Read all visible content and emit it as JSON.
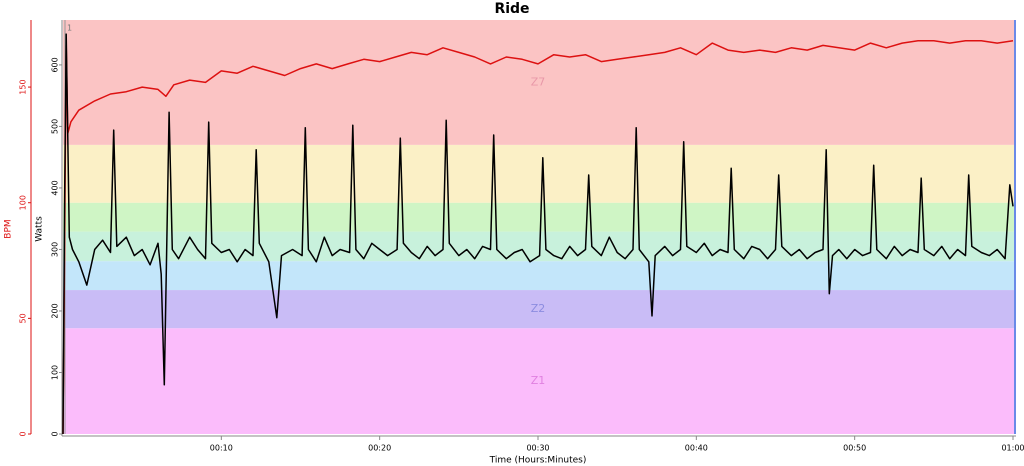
{
  "chart_data": {
    "type": "line",
    "title": "Ride",
    "x_label": "Time (Hours:Minutes)",
    "y_label": "Watts",
    "y2_label": "BPM",
    "annotations": [
      "1"
    ],
    "xlim": [
      0,
      60
    ],
    "xticks": [
      {
        "value": 10,
        "label": "00:10"
      },
      {
        "value": 20,
        "label": "00:20"
      },
      {
        "value": 30,
        "label": "00:30"
      },
      {
        "value": 40,
        "label": "00:40"
      },
      {
        "value": 50,
        "label": "00:50"
      },
      {
        "value": 60,
        "label": "01:00"
      }
    ],
    "ylim": [
      0,
      673
    ],
    "yticks": [
      0,
      100,
      200,
      300,
      400,
      500,
      600
    ],
    "y2lim": [
      0,
      179
    ],
    "y2ticks": [
      0,
      50,
      100,
      150
    ],
    "y2_color": "#dd1111",
    "zones": [
      {
        "label": "Z1",
        "from": 0,
        "to": 172,
        "color": "#fbbcfb",
        "label_color": "#e080e0"
      },
      {
        "label": "Z2",
        "from": 172,
        "to": 234,
        "color": "#c9bcf6",
        "label_color": "#8c8ce0"
      },
      {
        "from": 234,
        "to": 281,
        "color": "#c3e6fa"
      },
      {
        "from": 281,
        "to": 329,
        "color": "#c8f1dc"
      },
      {
        "from": 329,
        "to": 376,
        "color": "#cff5c5"
      },
      {
        "from": 376,
        "to": 470,
        "color": "#fbf0c6"
      },
      {
        "label": "Z7",
        "from": 470,
        "to": 673,
        "color": "#fbc4c4",
        "label_color": "#e898a8"
      }
    ],
    "series": [
      {
        "name": "Watts",
        "color": "#000000",
        "x": [
          0,
          0.1,
          0.2,
          0.3,
          0.4,
          0.6,
          1,
          1.5,
          2,
          2.5,
          3,
          3.2,
          3.4,
          4,
          4.5,
          5,
          5.5,
          6,
          6.2,
          6.4,
          6.7,
          6.9,
          7.3,
          8,
          8.5,
          9,
          9.2,
          9.4,
          10,
          10.5,
          11,
          11.5,
          12,
          12.2,
          12.4,
          13,
          13.5,
          13.8,
          14.5,
          15.1,
          15.3,
          15.5,
          16,
          16.5,
          17,
          17.5,
          18.1,
          18.3,
          18.5,
          19,
          19.5,
          20,
          20.5,
          21.1,
          21.3,
          21.5,
          22,
          22.5,
          23,
          23.5,
          24,
          24.2,
          24.4,
          25,
          25.5,
          26,
          26.5,
          27,
          27.2,
          27.4,
          28,
          28.5,
          29,
          29.5,
          30.1,
          30.3,
          30.5,
          31,
          31.5,
          32,
          32.5,
          33,
          33.2,
          33.4,
          34,
          34.5,
          35,
          35.5,
          36,
          36.2,
          36.4,
          37,
          37.2,
          37.4,
          38,
          38.5,
          39,
          39.2,
          39.4,
          40,
          40.5,
          41,
          41.5,
          42,
          42.2,
          42.4,
          43,
          43.5,
          44,
          44.5,
          45,
          45.2,
          45.4,
          46,
          46.5,
          47,
          47.5,
          48,
          48.2,
          48.4,
          48.6,
          49,
          49.5,
          50,
          50.5,
          51,
          51.2,
          51.4,
          52,
          52.5,
          53,
          53.5,
          54,
          54.2,
          54.4,
          55,
          55.5,
          56,
          56.5,
          57,
          57.2,
          57.4,
          58,
          58.5,
          59,
          59.5,
          59.8,
          60
        ],
        "values": [
          0,
          380,
          650,
          480,
          320,
          300,
          280,
          242,
          300,
          315,
          295,
          494,
          305,
          320,
          290,
          300,
          275,
          310,
          260,
          80,
          523,
          300,
          285,
          320,
          300,
          285,
          507,
          310,
          295,
          300,
          280,
          300,
          290,
          462,
          310,
          280,
          189,
          290,
          300,
          290,
          498,
          300,
          280,
          320,
          290,
          300,
          295,
          502,
          300,
          285,
          310,
          300,
          290,
          300,
          481,
          310,
          295,
          285,
          305,
          290,
          300,
          510,
          310,
          290,
          300,
          285,
          305,
          300,
          486,
          300,
          285,
          295,
          300,
          280,
          290,
          449,
          300,
          290,
          285,
          305,
          290,
          300,
          421,
          305,
          290,
          320,
          295,
          285,
          300,
          498,
          300,
          280,
          192,
          290,
          305,
          290,
          300,
          475,
          305,
          295,
          310,
          290,
          300,
          295,
          432,
          300,
          285,
          305,
          300,
          285,
          300,
          421,
          305,
          290,
          300,
          285,
          295,
          300,
          462,
          228,
          290,
          300,
          285,
          300,
          290,
          295,
          437,
          300,
          285,
          305,
          290,
          300,
          295,
          416,
          300,
          290,
          305,
          285,
          300,
          290,
          421,
          305,
          295,
          290,
          300,
          285,
          405,
          370
        ]
      },
      {
        "name": "BPM",
        "color": "#dd1111",
        "axis": "y2",
        "x": [
          0,
          0.1,
          0.2,
          0.3,
          0.5,
          1,
          2,
          3,
          4,
          5,
          6,
          6.5,
          7,
          8,
          9,
          10,
          11,
          12,
          13,
          14,
          15,
          16,
          17,
          18,
          19,
          20,
          21,
          22,
          23,
          24,
          25,
          26,
          27,
          28,
          29,
          30,
          31,
          32,
          33,
          34,
          35,
          36,
          37,
          38,
          39,
          40,
          41,
          42,
          43,
          44,
          45,
          46,
          47,
          48,
          49,
          50,
          51,
          52,
          53,
          54,
          55,
          56,
          57,
          58,
          59,
          60
        ],
        "values": [
          0,
          80,
          168,
          130,
          135,
          140,
          144,
          147,
          148,
          150,
          149,
          146,
          151,
          153,
          152,
          157,
          156,
          159,
          157,
          155,
          158,
          160,
          158,
          160,
          162,
          161,
          163,
          165,
          164,
          167,
          165,
          163,
          160,
          163,
          162,
          160,
          164,
          163,
          164,
          161,
          162,
          163,
          164,
          165,
          167,
          164,
          169,
          166,
          165,
          166,
          165,
          167,
          166,
          168,
          167,
          166,
          169,
          167,
          169,
          170,
          170,
          169,
          170,
          170,
          169,
          170
        ]
      }
    ]
  }
}
